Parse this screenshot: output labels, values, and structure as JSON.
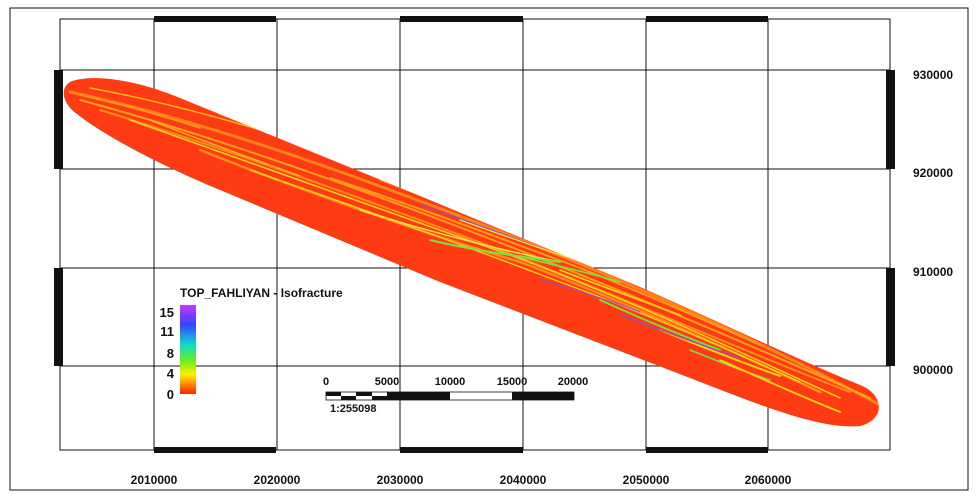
{
  "map": {
    "x_labels": [
      "2010000",
      "2020000",
      "2030000",
      "2040000",
      "2050000",
      "2060000"
    ],
    "y_labels": [
      "930000",
      "920000",
      "910000",
      "900000"
    ],
    "legend": {
      "title": "TOP_FAHLIYAN - Isofracture",
      "values": [
        "15",
        "11",
        "8",
        "4",
        "0"
      ],
      "colors": [
        "#cc33ff",
        "#3344ff",
        "#11ddcc",
        "#66ee22",
        "#ffee00",
        "#ff2200"
      ]
    },
    "scale_bar": {
      "labels": [
        "0",
        "5000",
        "10000",
        "15000",
        "20000"
      ],
      "ratio": "1:255098"
    },
    "field_colors": {
      "base": "#ff3b14",
      "streak_orange": "#ff8c1a",
      "streak_yellow": "#ffd21a",
      "streak_green": "#7ee03a",
      "streak_purple": "#8a55c8"
    }
  }
}
